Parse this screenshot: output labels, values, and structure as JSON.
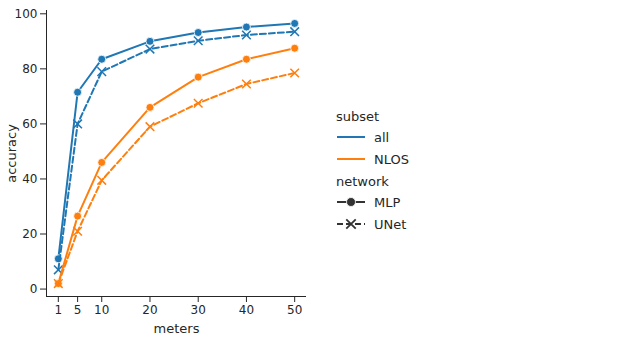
{
  "chart_data": {
    "type": "line",
    "x_label": "meters",
    "y_label": "accuracy",
    "x": [
      1,
      5,
      10,
      20,
      30,
      40,
      50
    ],
    "xlim": [
      -1.45,
      52.45
    ],
    "xticks": [
      1,
      5,
      10,
      20,
      30,
      40,
      50
    ],
    "ylim": [
      -2.7,
      101.2
    ],
    "yticks": [
      0,
      20,
      40,
      60,
      80,
      100
    ],
    "grid": false,
    "legend": "right",
    "legend_groups": [
      {
        "title": "subset",
        "items": [
          {
            "label": "all",
            "color": "#1f77b4"
          },
          {
            "label": "NLOS",
            "color": "#ff7f0e"
          }
        ]
      },
      {
        "title": "network",
        "items": [
          {
            "label": "MLP",
            "marker": "circle",
            "line_style": "solid"
          },
          {
            "label": "UNet",
            "marker": "x",
            "line_style": "dashed"
          }
        ]
      }
    ],
    "series": [
      {
        "subset": "all",
        "network": "MLP",
        "color": "#1f77b4",
        "marker": "circle",
        "line_style": "solid",
        "values": [
          11,
          71.5,
          83.5,
          90,
          93.2,
          95.2,
          96.5
        ]
      },
      {
        "subset": "all",
        "network": "UNet",
        "color": "#1f77b4",
        "marker": "x",
        "line_style": "dashed",
        "values": [
          7,
          60,
          79,
          87.2,
          90.2,
          92.3,
          93.5
        ]
      },
      {
        "subset": "NLOS",
        "network": "MLP",
        "color": "#ff7f0e",
        "marker": "circle",
        "line_style": "solid",
        "values": [
          2,
          26.5,
          46,
          66,
          77,
          83.5,
          87.5
        ]
      },
      {
        "subset": "NLOS",
        "network": "UNet",
        "color": "#ff7f0e",
        "marker": "x",
        "line_style": "dashed",
        "values": [
          2,
          21,
          39.5,
          59,
          67.5,
          74.5,
          78.5
        ]
      }
    ]
  }
}
